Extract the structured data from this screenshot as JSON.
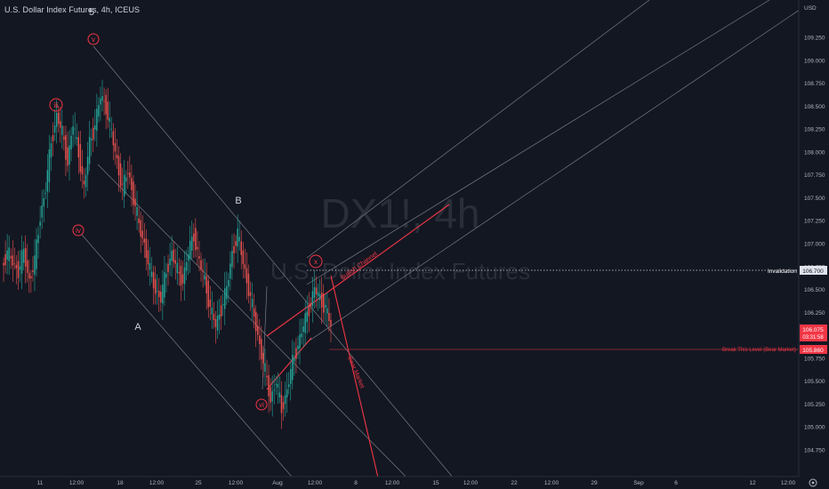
{
  "header": {
    "symbol_title": "U.S. Dollar Index Futures, 4h, ICEUS"
  },
  "watermark": {
    "ticker": "DX1!, 4h",
    "name": "U.S. Dollar Index Futures"
  },
  "price_axis": {
    "currency": "USD",
    "ticks": [
      "109.250",
      "109.000",
      "108.750",
      "108.500",
      "108.250",
      "108.000",
      "107.750",
      "107.500",
      "107.250",
      "107.000",
      "106.750",
      "106.500",
      "106.250",
      "106.000",
      "105.750",
      "105.500",
      "105.250",
      "105.000",
      "104.750"
    ],
    "tick_values": [
      109.25,
      109.0,
      108.75,
      108.5,
      108.25,
      108.0,
      107.75,
      107.5,
      107.25,
      107.0,
      106.75,
      106.5,
      106.25,
      106.0,
      105.75,
      105.5,
      105.25,
      105.0,
      104.75
    ]
  },
  "time_axis": {
    "labels": [
      "11",
      "12:00",
      "18",
      "12:00",
      "25",
      "12:00",
      "Aug",
      "12:00",
      "8",
      "12:00",
      "15",
      "12:00",
      "22",
      "12:00",
      "29",
      "Sep",
      "6",
      "12",
      "12:00"
    ]
  },
  "price_tags": {
    "invalidation": {
      "value": "106.700",
      "label": "Invalidation"
    },
    "current": {
      "value": "106.075",
      "countdown": "03:31:58",
      "color": "#f23645"
    },
    "break_level": {
      "value": "105.860",
      "label": "Break This Level (Bear Market)",
      "color": "#f23645"
    }
  },
  "wave_labels": {
    "top_5": "5",
    "v": "v",
    "iii": "iii",
    "iv": "iv",
    "x": "x",
    "vi": "vi",
    "A": "A",
    "B": "B"
  },
  "annotations": {
    "bullish_channel": "Bullish Channel",
    "bear_market": "Bear Market"
  },
  "colors": {
    "up": "#26a69a",
    "down": "#ef5350",
    "red": "#f23645",
    "background": "#131722"
  },
  "chart_data": {
    "type": "candlestick",
    "title": "DX1!, 4h",
    "ylim": [
      104.6,
      109.5
    ],
    "close_approx": [
      106.9,
      106.8,
      106.7,
      106.9,
      106.6,
      106.8,
      107.3,
      107.6,
      108.1,
      108.4,
      108.2,
      107.9,
      108.3,
      108.0,
      107.6,
      108.1,
      108.3,
      108.6,
      108.5,
      108.2,
      107.9,
      107.6,
      107.8,
      107.5,
      107.2,
      107.0,
      106.7,
      106.5,
      106.4,
      106.7,
      106.9,
      106.7,
      106.6,
      106.9,
      107.1,
      106.8,
      106.6,
      106.3,
      106.1,
      106.3,
      106.5,
      106.9,
      107.1,
      106.8,
      106.5,
      106.2,
      105.9,
      105.6,
      105.3,
      105.5,
      105.2,
      105.4,
      105.7,
      105.9,
      106.1,
      106.3,
      106.5,
      106.4,
      106.3,
      106.1
    ],
    "price_levels": {
      "invalidation": 106.7,
      "current": 106.075,
      "break_level": 105.86
    }
  }
}
